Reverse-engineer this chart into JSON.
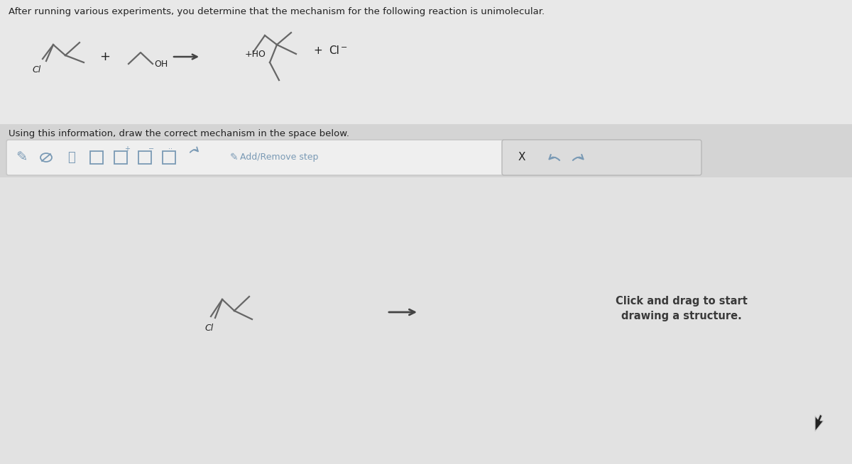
{
  "bg_color": "#d4d4d4",
  "upper_bg": "#e8e8e8",
  "toolbar_bg": "#efefef",
  "toolbar_border": "#c8c8c8",
  "text_color": "#222222",
  "subtitle_color": "#333333",
  "title_text": "After running various experiments, you determine that the mechanism for the following reaction is unimolecular.",
  "subtitle_text": "Using this information, draw the correct mechanism in the space below.",
  "click_drag_text": "Click and drag to start\ndrawing a structure.",
  "add_remove_text": "Add/Remove step",
  "line_color": "#555555",
  "mol_line_color": "#666666",
  "arrow_color": "#444444",
  "icon_color": "#7a9ab5",
  "right_panel_bg": "#dcdcdc",
  "right_panel_border": "#b8b8b8",
  "white_area_color": "#e8e8e8"
}
